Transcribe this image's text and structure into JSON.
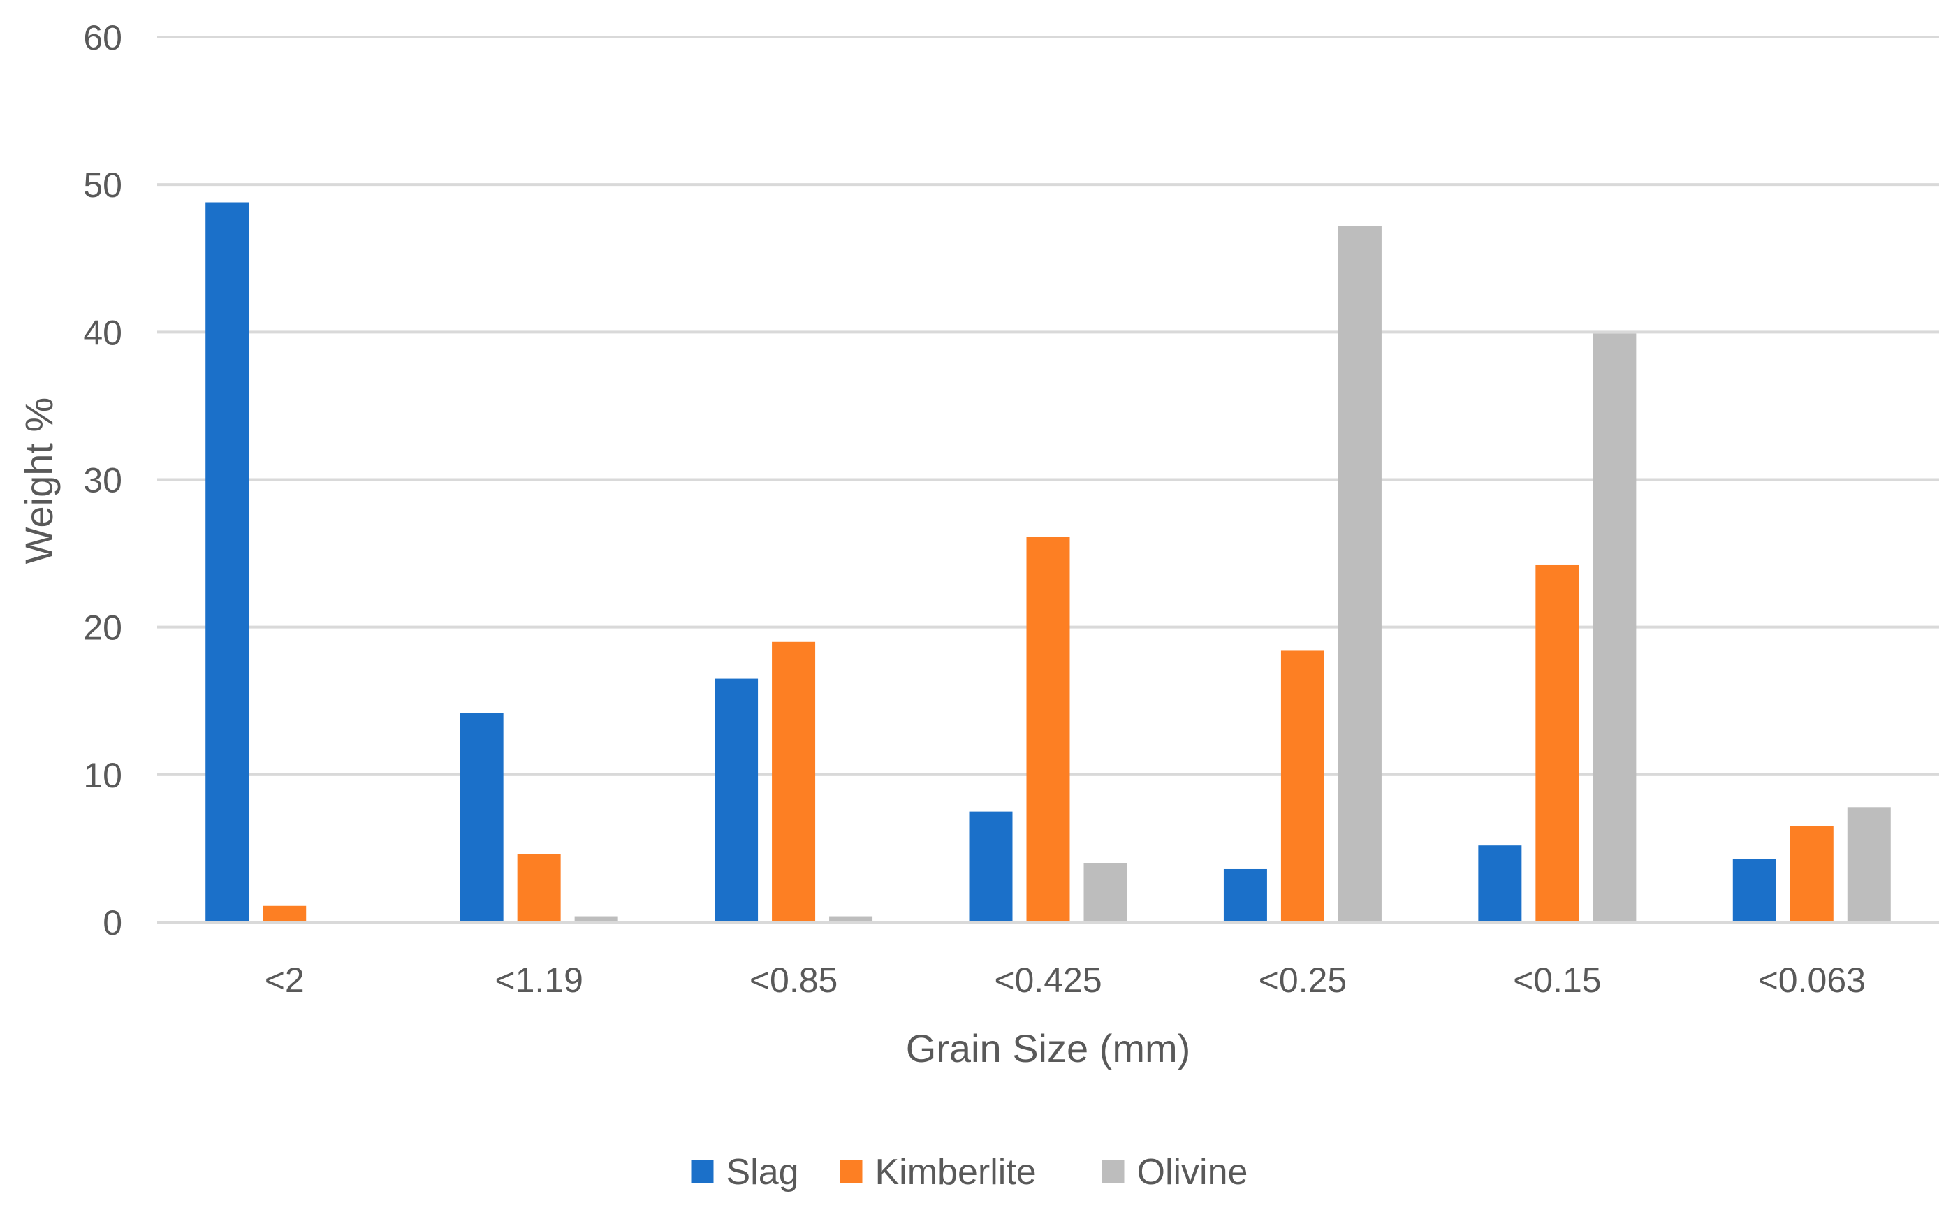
{
  "chart_data": {
    "type": "bar",
    "title": "",
    "xlabel": "Grain Size (mm)",
    "ylabel": "Weight %",
    "ylim": [
      0,
      60
    ],
    "yticks": [
      0,
      10,
      20,
      30,
      40,
      50,
      60
    ],
    "grid": true,
    "legend_position": "bottom",
    "categories": [
      "<2",
      "<1.19",
      "<0.85",
      "<0.425",
      "<0.25",
      "<0.15",
      "<0.063"
    ],
    "series": [
      {
        "name": "Slag",
        "color": "#1b70c9",
        "values": [
          48.8,
          14.2,
          16.5,
          7.5,
          3.6,
          5.2,
          4.3
        ]
      },
      {
        "name": "Kimberlite",
        "color": "#fd7f23",
        "values": [
          1.1,
          4.6,
          19.0,
          26.1,
          18.4,
          24.2,
          6.5
        ]
      },
      {
        "name": "Olivine",
        "color": "#bdbdbd",
        "values": [
          0.0,
          0.4,
          0.4,
          4.0,
          47.2,
          39.9,
          7.8
        ]
      }
    ]
  }
}
